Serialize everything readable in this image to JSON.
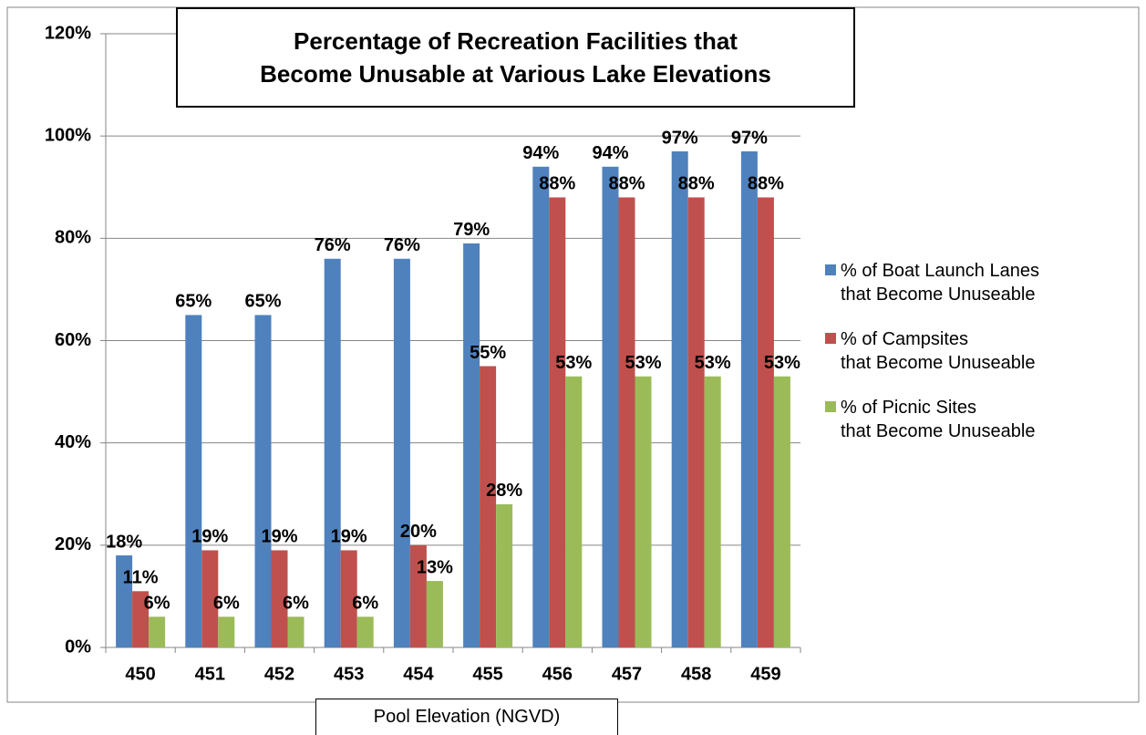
{
  "chart_data": {
    "type": "bar",
    "title": "Percentage of Recreation Facilities that\nBecome Unusable at Various Lake Elevations",
    "x_label": "Pool Elevation (NGVD)",
    "categories": [
      "450",
      "451",
      "452",
      "453",
      "454",
      "455",
      "456",
      "457",
      "458",
      "459"
    ],
    "series": [
      {
        "name": "% of Boat Launch Lanes\nthat Become Unuseable",
        "color": "#4f81bd",
        "values": [
          18,
          65,
          65,
          76,
          76,
          79,
          94,
          94,
          97,
          97
        ],
        "value_labels": [
          "18%",
          "65%",
          "65%",
          "76%",
          "76%",
          "79%",
          "94%",
          "94%",
          "97%",
          "97%"
        ]
      },
      {
        "name": "% of Campsites\nthat Become Unuseable",
        "color": "#c0504d",
        "values": [
          11,
          19,
          19,
          19,
          20,
          55,
          88,
          88,
          88,
          88
        ],
        "value_labels": [
          "11%",
          "19%",
          "19%",
          "19%",
          "20%",
          "55%",
          "88%",
          "88%",
          "88%",
          "88%"
        ]
      },
      {
        "name": "% of Picnic Sites\nthat Become Unuseable",
        "color": "#9bbb59",
        "values": [
          6,
          6,
          6,
          6,
          13,
          28,
          53,
          53,
          53,
          53
        ],
        "value_labels": [
          "6%",
          "6%",
          "6%",
          "6%",
          "13%",
          "28%",
          "53%",
          "53%",
          "53%",
          "53%"
        ]
      }
    ],
    "ylim": [
      0,
      120
    ],
    "yticks": [
      {
        "value": 0,
        "label": "0%"
      },
      {
        "value": 20,
        "label": "20%"
      },
      {
        "value": 40,
        "label": "40%"
      },
      {
        "value": 60,
        "label": "60%"
      },
      {
        "value": 80,
        "label": "80%"
      },
      {
        "value": 100,
        "label": "100%"
      },
      {
        "value": 120,
        "label": "120%"
      }
    ],
    "grid": true,
    "legend": "right"
  }
}
